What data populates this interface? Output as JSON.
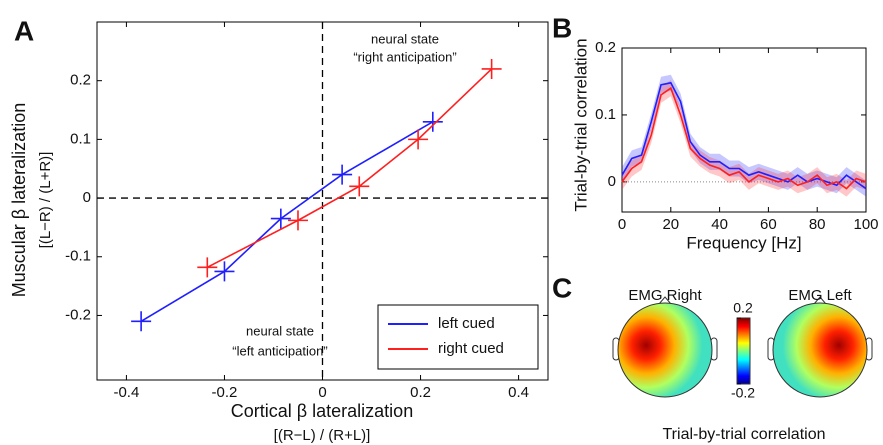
{
  "chart_data": [
    {
      "type": "line",
      "panel": "A",
      "xlabel": [
        "Cortical β lateralization",
        "[(R−L) / (R+L)]"
      ],
      "ylabel": [
        "Muscular β lateralization",
        "[(L−R) / (L+R)]"
      ],
      "xlim": [
        -0.46,
        0.46
      ],
      "ylim": [
        -0.31,
        0.3
      ],
      "xticks": [
        -0.4,
        -0.2,
        0,
        0.2,
        0.4
      ],
      "yticks": [
        -0.2,
        -0.1,
        0,
        0.1,
        0.2
      ],
      "origin_lines": true,
      "marker": "+",
      "legend": "lower right",
      "annotations": [
        "neural state",
        "“right anticipation”",
        "neural state",
        "“left anticipation”"
      ],
      "series": [
        {
          "name": "left cued",
          "color": "#1f1fff",
          "x": [
            -0.37,
            -0.2,
            -0.085,
            0.04,
            0.225
          ],
          "values": [
            -0.21,
            -0.125,
            -0.035,
            0.04,
            0.13
          ]
        },
        {
          "name": "right cued",
          "color": "#ff1f1f",
          "x": [
            -0.235,
            -0.05,
            0.075,
            0.195,
            0.345
          ],
          "values": [
            -0.118,
            -0.038,
            0.02,
            0.1,
            0.22
          ]
        }
      ]
    },
    {
      "type": "line",
      "panel": "B",
      "xlabel": "Frequency [Hz]",
      "ylabel": "Trial-by-trial correlation",
      "xlim": [
        0,
        100
      ],
      "ylim": [
        -0.045,
        0.2
      ],
      "xticks": [
        0,
        20,
        40,
        60,
        80,
        100
      ],
      "yticks": [
        0,
        0.1,
        0.2
      ],
      "reference_line": 0,
      "x": [
        0,
        4,
        8,
        12,
        16,
        20,
        24,
        28,
        32,
        36,
        40,
        44,
        48,
        52,
        56,
        60,
        64,
        68,
        72,
        76,
        80,
        84,
        88,
        92,
        96,
        100
      ],
      "series": [
        {
          "color": "#1f1fff",
          "band": 0.012,
          "values": [
            0.01,
            0.035,
            0.04,
            0.09,
            0.145,
            0.148,
            0.12,
            0.06,
            0.04,
            0.03,
            0.03,
            0.02,
            0.02,
            0.01,
            0.015,
            0.01,
            0.005,
            0.0,
            0.01,
            0.0,
            0.005,
            0.0,
            -0.005,
            0.01,
            0.0,
            -0.01
          ]
        },
        {
          "color": "#ff1f1f",
          "band": 0.012,
          "values": [
            0.0,
            0.02,
            0.03,
            0.07,
            0.13,
            0.14,
            0.1,
            0.05,
            0.035,
            0.025,
            0.02,
            0.01,
            0.015,
            0.0,
            0.01,
            0.005,
            0.0,
            0.005,
            -0.005,
            0.0,
            0.01,
            -0.005,
            0.0,
            -0.01,
            0.005,
            0.0
          ]
        }
      ]
    },
    {
      "type": "topoplot",
      "panel": "C",
      "maps": [
        "EMG Right",
        "EMG Left"
      ],
      "colorbar_lim": [
        -0.2,
        0.2
      ],
      "colorbar_ticks": [
        0.2,
        -0.2
      ],
      "xlabel": "Trial-by-trial correlation"
    }
  ]
}
